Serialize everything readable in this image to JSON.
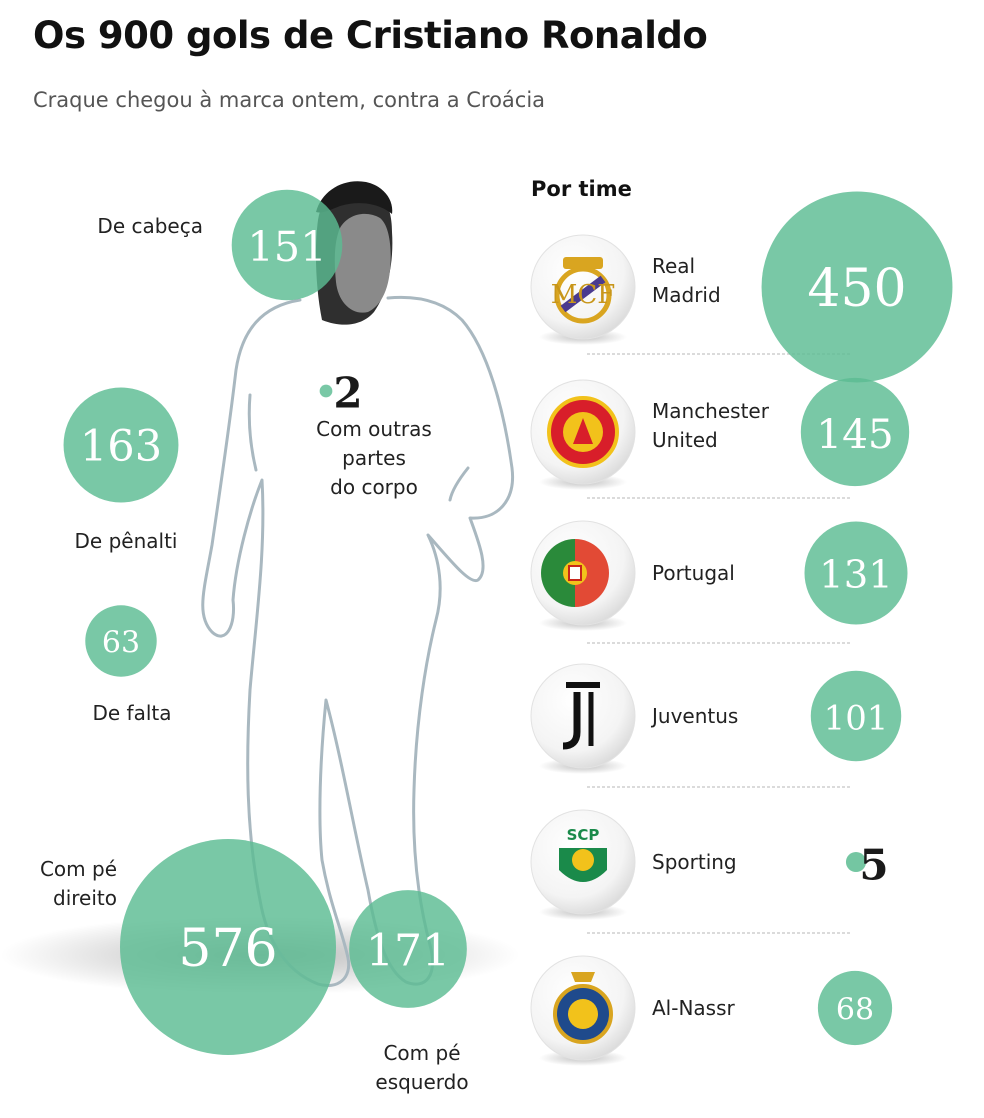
{
  "header": {
    "title": "Os 900 gols de Cristiano Ronaldo",
    "subtitle": "Craque chegou à marca ontem, contra a Croácia"
  },
  "colors": {
    "bubble": "#5cbc92",
    "bubble_dark": "#3a9e72",
    "outline": "#a9b8c0",
    "separator": "#cfcfcf"
  },
  "chart_data": [
    {
      "type": "bubble",
      "name": "by_body_part",
      "categories": [
        "De cabeça",
        "De pênalti",
        "De falta",
        "Com outras partes do corpo",
        "Com pé direito",
        "Com pé esquerdo"
      ],
      "values": [
        151,
        163,
        63,
        2,
        576,
        171
      ]
    },
    {
      "type": "bubble",
      "name": "by_team",
      "title": "Por time",
      "categories": [
        "Real Madrid",
        "Manchester United",
        "Portugal",
        "Juventus",
        "Sporting",
        "Al-Nassr"
      ],
      "values": [
        450,
        145,
        131,
        101,
        5,
        68
      ],
      "icons": [
        "real-madrid-crest-icon",
        "manchester-united-crest-icon",
        "portugal-flag-icon",
        "juventus-logo-icon",
        "sporting-crest-icon",
        "al-nassr-crest-icon"
      ]
    }
  ]
}
